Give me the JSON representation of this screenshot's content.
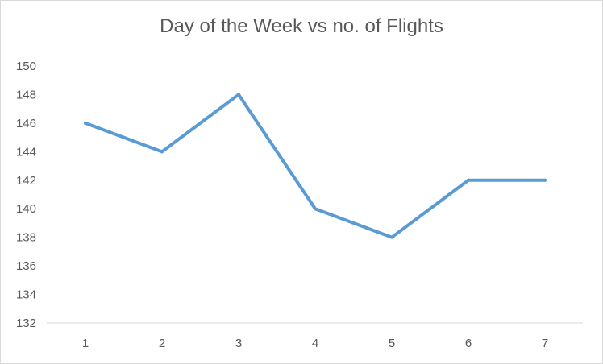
{
  "chart_data": {
    "type": "line",
    "title": "Day of the Week vs no. of Flights",
    "xlabel": "",
    "ylabel": "",
    "x": [
      1,
      2,
      3,
      4,
      5,
      6,
      7
    ],
    "series": [
      {
        "values": [
          146,
          144,
          148,
          140,
          138,
          142,
          142
        ]
      }
    ],
    "ylim": [
      132,
      150
    ],
    "y_ticks": [
      132,
      134,
      136,
      138,
      140,
      142,
      144,
      146,
      148,
      150
    ],
    "grid": false,
    "legend": "none",
    "line_color": "#5b9bd5",
    "axis_color": "#d9d9d9",
    "text_color": "#595959"
  }
}
